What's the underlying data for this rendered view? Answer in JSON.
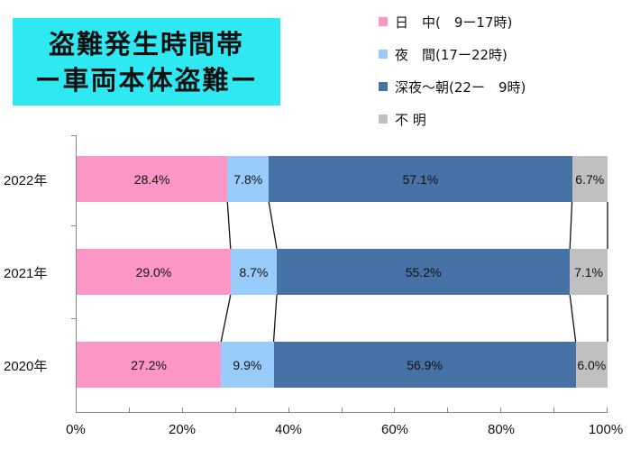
{
  "title": {
    "line1": "盗難発生時間帯",
    "line2": "ー車両本体盗難ー",
    "bg_color": "#2ee8f2"
  },
  "legend": [
    {
      "label": "日　中(　9ー17時)",
      "color": "#fb96c7"
    },
    {
      "label": "夜　間(17ー22時)",
      "color": "#99ccfb"
    },
    {
      "label": "深夜〜朝(22ー　9時)",
      "color": "#4672a6"
    },
    {
      "label": "不 明",
      "color": "#c0c0c0"
    }
  ],
  "chart_data": {
    "type": "bar",
    "orientation": "horizontal",
    "stacked": "100%",
    "title": "盗難発生時間帯 ー車両本体盗難ー",
    "categories": [
      "2022年",
      "2021年",
      "2020年"
    ],
    "series": [
      {
        "name": "日　中(　9ー17時)",
        "color": "#fb96c7",
        "values": [
          28.4,
          29.0,
          27.2
        ]
      },
      {
        "name": "夜　間(17ー22時)",
        "color": "#99ccfb",
        "values": [
          7.8,
          8.7,
          9.9
        ]
      },
      {
        "name": "深夜〜朝(22ー　9時)",
        "color": "#4672a6",
        "values": [
          57.1,
          55.2,
          56.9
        ]
      },
      {
        "name": "不 明",
        "color": "#c0c0c0",
        "values": [
          6.7,
          7.1,
          6.0
        ]
      }
    ],
    "labels": [
      [
        "28.4%",
        "7.8%",
        "57.1%",
        "6.7%"
      ],
      [
        "29.0%",
        "8.7%",
        "55.2%",
        "7.1%"
      ],
      [
        "27.2%",
        "9.9%",
        "56.9%",
        "6.0%"
      ]
    ],
    "xticks": [
      "0%",
      "20%",
      "40%",
      "60%",
      "80%",
      "100%"
    ],
    "xlim": [
      0,
      100
    ],
    "grid": false,
    "series_lines": true,
    "legend_position": "top-right",
    "xlabel": "",
    "ylabel": ""
  }
}
